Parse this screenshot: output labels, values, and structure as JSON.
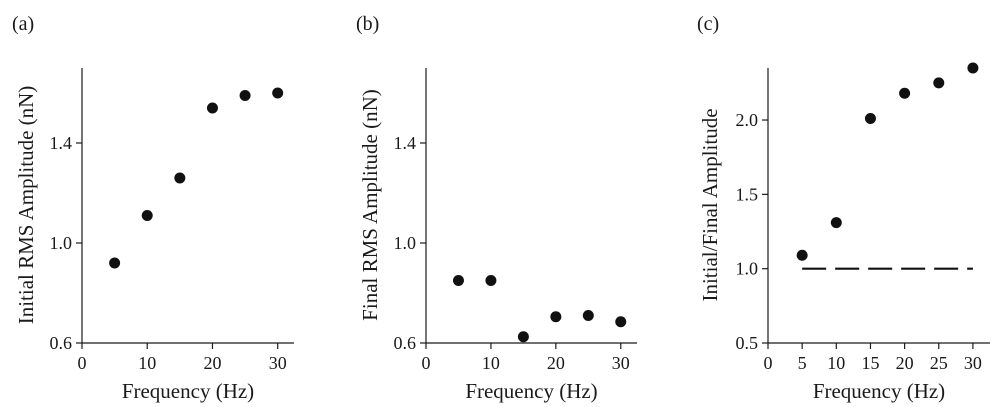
{
  "chart_data": [
    {
      "type": "scatter",
      "panel_label": "(a)",
      "xlabel": "Frequency (Hz)",
      "ylabel": "Initial RMS Amplitude (nN)",
      "xlim": [
        0,
        32.5
      ],
      "ylim": [
        0.6,
        1.7
      ],
      "xticks": [
        0,
        10,
        20,
        30
      ],
      "xtick_labels": [
        "0",
        "10",
        "20",
        "30"
      ],
      "yticks": [
        0.6,
        1.0,
        1.4
      ],
      "ytick_labels": [
        "0.6",
        "1.0",
        "1.4"
      ],
      "x": [
        5,
        10,
        15,
        20,
        25,
        30
      ],
      "y": [
        0.92,
        1.11,
        1.26,
        1.54,
        1.59,
        1.6
      ]
    },
    {
      "type": "scatter",
      "panel_label": "(b)",
      "xlabel": "Frequency (Hz)",
      "ylabel": "Final RMS Amplitude (nN)",
      "xlim": [
        0,
        32.5
      ],
      "ylim": [
        0.6,
        1.7
      ],
      "xticks": [
        0,
        10,
        20,
        30
      ],
      "xtick_labels": [
        "0",
        "10",
        "20",
        "30"
      ],
      "yticks": [
        0.6,
        1.0,
        1.4
      ],
      "ytick_labels": [
        "0.6",
        "1.0",
        "1.4"
      ],
      "x": [
        5,
        10,
        15,
        20,
        25,
        30
      ],
      "y": [
        0.85,
        0.85,
        0.625,
        0.705,
        0.71,
        0.685
      ]
    },
    {
      "type": "scatter",
      "panel_label": "(c)",
      "xlabel": "Frequency (Hz)",
      "ylabel": "Initial/Final Amplitude",
      "xlim": [
        0,
        32.5
      ],
      "ylim": [
        0.5,
        2.35
      ],
      "xticks": [
        0,
        5,
        10,
        15,
        20,
        25,
        30
      ],
      "xtick_labels": [
        "0",
        "5",
        "10",
        "15",
        "20",
        "25",
        "30"
      ],
      "yticks": [
        0.5,
        1.0,
        1.5,
        2.0
      ],
      "ytick_labels": [
        "0.5",
        "1.0",
        "1.5",
        "2.0"
      ],
      "x": [
        5,
        10,
        15,
        20,
        25,
        30
      ],
      "y": [
        1.09,
        1.31,
        2.01,
        2.18,
        2.25,
        2.35
      ],
      "reference_line": {
        "y": 1.0,
        "x_range": [
          5,
          30
        ],
        "style": "dashed"
      }
    }
  ]
}
